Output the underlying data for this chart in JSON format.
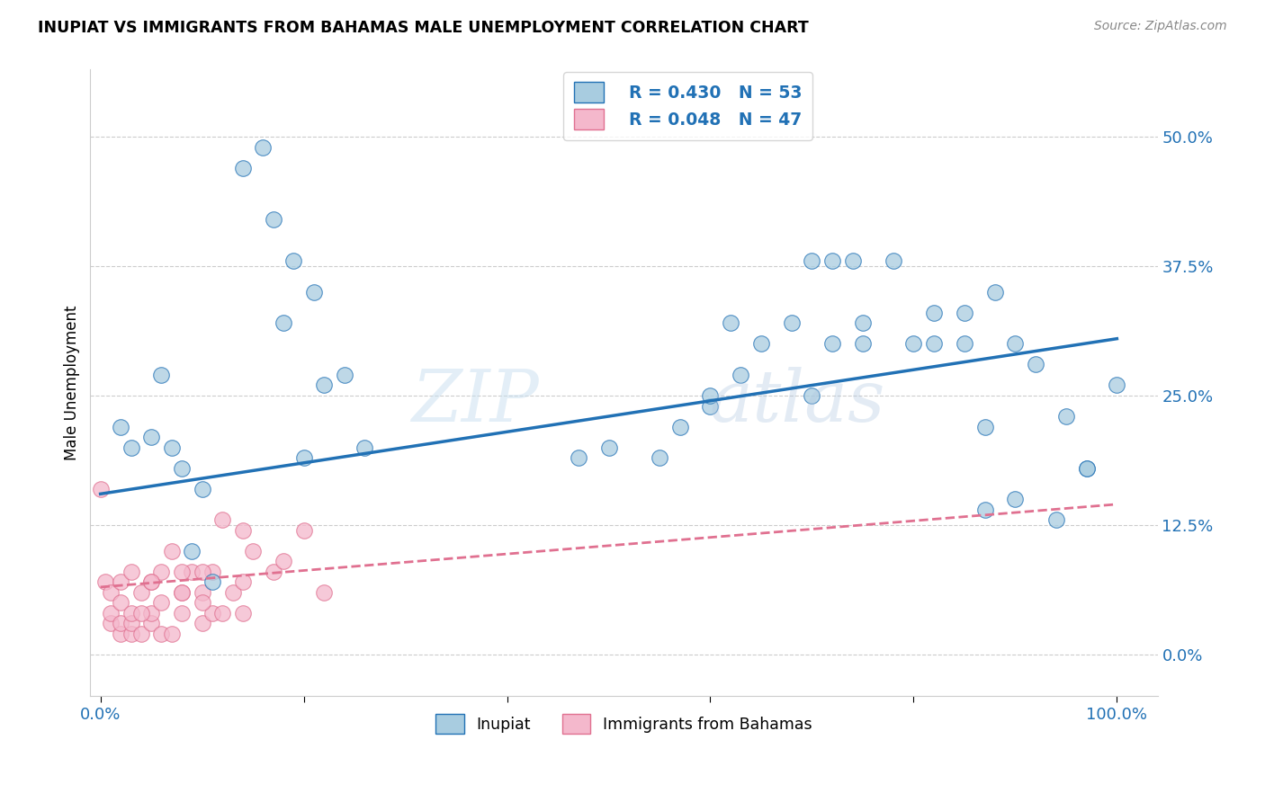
{
  "title": "INUPIAT VS IMMIGRANTS FROM BAHAMAS MALE UNEMPLOYMENT CORRELATION CHART",
  "source": "Source: ZipAtlas.com",
  "ylabel": "Male Unemployment",
  "ytick_labels": [
    "0.0%",
    "12.5%",
    "25.0%",
    "37.5%",
    "50.0%"
  ],
  "ytick_values": [
    0.0,
    0.125,
    0.25,
    0.375,
    0.5
  ],
  "legend_r1": "R = 0.430",
  "legend_n1": "N = 53",
  "legend_r2": "R = 0.048",
  "legend_n2": "N = 47",
  "color_inupiat": "#a8cce0",
  "color_bahamas": "#f4b8cc",
  "color_inupiat_line": "#2171b5",
  "color_bahamas_line": "#e07090",
  "watermark_color": "#d0e4f0",
  "inupiat_x": [
    0.14,
    0.16,
    0.17,
    0.19,
    0.21,
    0.22,
    0.24,
    0.02,
    0.03,
    0.05,
    0.06,
    0.07,
    0.08,
    0.1,
    0.47,
    0.5,
    0.55,
    0.6,
    0.62,
    0.65,
    0.68,
    0.7,
    0.72,
    0.75,
    0.78,
    0.8,
    0.82,
    0.85,
    0.88,
    0.9,
    0.92,
    0.95,
    0.97,
    1.0,
    0.72,
    0.74,
    0.85,
    0.87,
    0.57,
    0.6,
    0.63,
    0.7,
    0.75,
    0.82,
    0.87,
    0.9,
    0.94,
    0.97,
    0.18,
    0.2,
    0.09,
    0.11,
    0.26
  ],
  "inupiat_y": [
    0.47,
    0.49,
    0.42,
    0.38,
    0.35,
    0.26,
    0.27,
    0.22,
    0.2,
    0.21,
    0.27,
    0.2,
    0.18,
    0.16,
    0.19,
    0.2,
    0.19,
    0.24,
    0.32,
    0.3,
    0.32,
    0.25,
    0.3,
    0.32,
    0.38,
    0.3,
    0.33,
    0.33,
    0.35,
    0.3,
    0.28,
    0.23,
    0.18,
    0.26,
    0.38,
    0.38,
    0.3,
    0.22,
    0.22,
    0.25,
    0.27,
    0.38,
    0.3,
    0.3,
    0.14,
    0.15,
    0.13,
    0.18,
    0.32,
    0.19,
    0.1,
    0.07,
    0.2
  ],
  "bahamas_x": [
    0.0,
    0.005,
    0.01,
    0.01,
    0.01,
    0.02,
    0.02,
    0.02,
    0.02,
    0.03,
    0.03,
    0.03,
    0.03,
    0.04,
    0.04,
    0.05,
    0.05,
    0.05,
    0.06,
    0.06,
    0.07,
    0.07,
    0.08,
    0.08,
    0.09,
    0.1,
    0.1,
    0.11,
    0.11,
    0.12,
    0.13,
    0.14,
    0.15,
    0.17,
    0.2,
    0.22,
    0.1,
    0.12,
    0.08,
    0.14,
    0.06,
    0.04,
    0.05,
    0.08,
    0.1,
    0.14,
    0.18
  ],
  "bahamas_y": [
    0.16,
    0.07,
    0.03,
    0.04,
    0.06,
    0.02,
    0.03,
    0.05,
    0.07,
    0.02,
    0.03,
    0.04,
    0.08,
    0.02,
    0.06,
    0.03,
    0.04,
    0.07,
    0.02,
    0.08,
    0.02,
    0.1,
    0.04,
    0.06,
    0.08,
    0.03,
    0.06,
    0.04,
    0.08,
    0.13,
    0.06,
    0.04,
    0.1,
    0.08,
    0.12,
    0.06,
    0.08,
    0.04,
    0.06,
    0.12,
    0.05,
    0.04,
    0.07,
    0.08,
    0.05,
    0.07,
    0.09
  ],
  "xlim": [
    -0.01,
    1.04
  ],
  "ylim": [
    -0.04,
    0.565
  ],
  "inupiat_line_x0": 0.0,
  "inupiat_line_y0": 0.155,
  "inupiat_line_x1": 1.0,
  "inupiat_line_y1": 0.305,
  "bahamas_line_x0": 0.0,
  "bahamas_line_y0": 0.065,
  "bahamas_line_x1": 1.0,
  "bahamas_line_y1": 0.145
}
